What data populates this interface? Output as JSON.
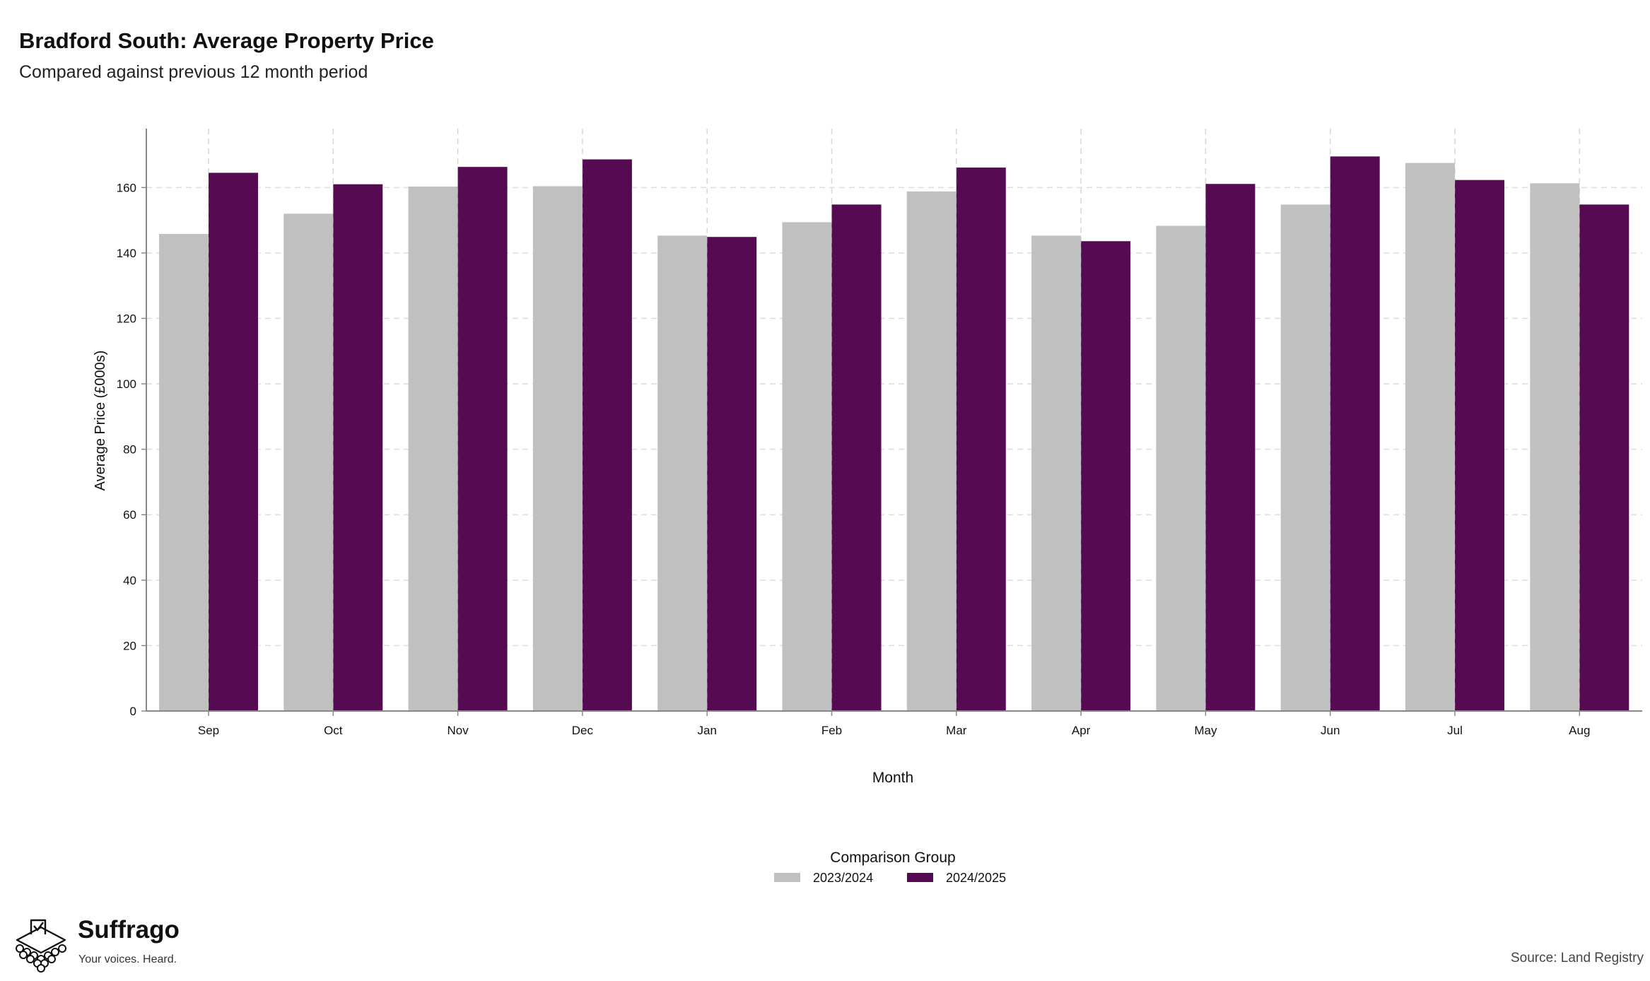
{
  "header": {
    "title": "Bradford South: Average Property Price",
    "subtitle": "Compared against previous 12 month period"
  },
  "footer": {
    "brand_name": "Suffrago",
    "brand_tagline": "Your voices. Heard.",
    "source": "Source: Land Registry"
  },
  "colors": {
    "series_prev": "#c0c0c0",
    "series_curr": "#550a51",
    "axis": "#888888",
    "grid": "#dddddd"
  },
  "chart_data": {
    "type": "bar",
    "xlabel": "Month",
    "ylabel": "Average Price (£000s)",
    "ylim": [
      0,
      178
    ],
    "yticks": [
      0,
      20,
      40,
      60,
      80,
      100,
      120,
      140,
      160
    ],
    "grid": true,
    "legend_title": "Comparison Group",
    "legend_position": "bottom",
    "categories": [
      "Sep",
      "Oct",
      "Nov",
      "Dec",
      "Jan",
      "Feb",
      "Mar",
      "Apr",
      "May",
      "Jun",
      "Jul",
      "Aug"
    ],
    "series": [
      {
        "name": "2023/2024",
        "color": "#c0c0c0",
        "values": [
          145.8,
          152.0,
          160.3,
          160.4,
          145.3,
          149.4,
          158.8,
          145.3,
          148.3,
          154.8,
          167.5,
          161.3
        ]
      },
      {
        "name": "2024/2025",
        "color": "#550a51",
        "values": [
          164.5,
          161.0,
          166.3,
          168.6,
          144.9,
          154.8,
          166.1,
          143.6,
          161.1,
          169.5,
          162.3,
          154.8
        ]
      }
    ]
  }
}
